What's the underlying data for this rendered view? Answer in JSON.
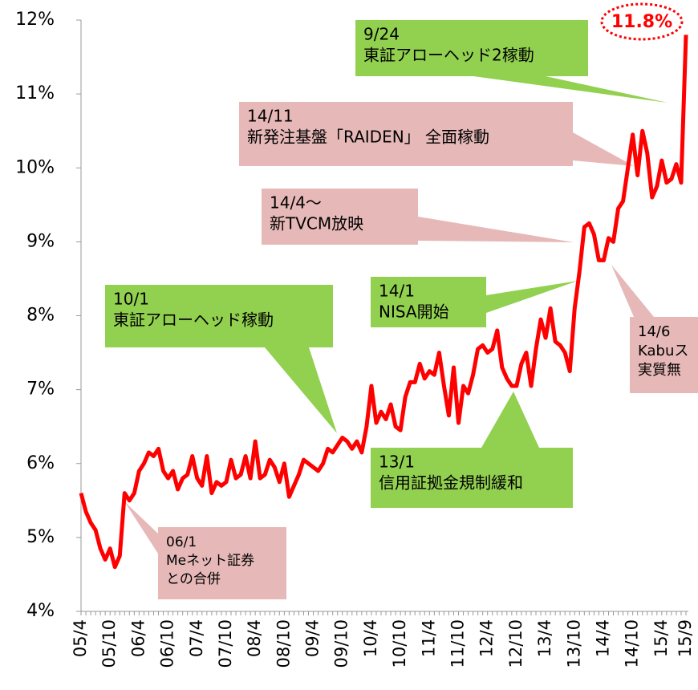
{
  "chart_data": {
    "type": "line",
    "categories": [
      "05/4",
      null,
      null,
      null,
      null,
      null,
      "05/10",
      null,
      null,
      null,
      null,
      null,
      "06/4",
      null,
      null,
      null,
      null,
      null,
      "06/10",
      null,
      null,
      null,
      null,
      null,
      "07/4",
      null,
      null,
      null,
      null,
      null,
      "07/10",
      null,
      null,
      null,
      null,
      null,
      "08/4",
      null,
      null,
      null,
      null,
      null,
      "08/10",
      null,
      null,
      null,
      null,
      null,
      "09/4",
      null,
      null,
      null,
      null,
      null,
      "09/10",
      null,
      null,
      null,
      null,
      null,
      "10/4",
      null,
      null,
      null,
      null,
      null,
      "10/10",
      null,
      null,
      null,
      null,
      null,
      "11/4",
      null,
      null,
      null,
      null,
      null,
      "11/10",
      null,
      null,
      null,
      null,
      null,
      "12/4",
      null,
      null,
      null,
      null,
      null,
      "12/10",
      null,
      null,
      null,
      null,
      null,
      "13/4",
      null,
      null,
      null,
      null,
      null,
      "13/10",
      null,
      null,
      null,
      null,
      null,
      "14/4",
      null,
      null,
      null,
      null,
      null,
      "14/10",
      null,
      null,
      null,
      null,
      null,
      "15/4",
      null,
      null,
      null,
      null,
      "15/9"
    ],
    "values": [
      5.6,
      5.35,
      5.2,
      5.1,
      4.85,
      4.7,
      4.85,
      4.6,
      4.75,
      5.6,
      5.5,
      5.6,
      5.9,
      6.0,
      6.15,
      6.1,
      6.2,
      5.9,
      5.8,
      5.9,
      5.65,
      5.8,
      5.85,
      6.1,
      5.8,
      5.7,
      6.1,
      5.6,
      5.75,
      5.7,
      5.75,
      6.05,
      5.8,
      5.85,
      6.1,
      5.8,
      6.3,
      5.8,
      5.85,
      6.05,
      5.95,
      5.75,
      6.0,
      5.55,
      5.7,
      5.85,
      6.05,
      6.0,
      5.95,
      5.9,
      6.0,
      6.2,
      6.15,
      6.25,
      6.35,
      6.3,
      6.2,
      6.3,
      6.15,
      6.5,
      7.05,
      6.55,
      6.7,
      6.6,
      6.8,
      6.5,
      6.45,
      6.9,
      7.1,
      7.1,
      7.35,
      7.15,
      7.25,
      7.2,
      7.5,
      7.05,
      6.65,
      7.3,
      6.55,
      7.05,
      6.95,
      7.2,
      7.55,
      7.6,
      7.5,
      7.55,
      7.8,
      7.3,
      7.15,
      7.05,
      7.05,
      7.35,
      7.5,
      7.05,
      7.55,
      7.95,
      7.7,
      8.1,
      7.65,
      7.6,
      7.5,
      7.25,
      8.1,
      8.6,
      9.2,
      9.25,
      9.1,
      8.75,
      8.75,
      9.05,
      9.0,
      9.45,
      9.55,
      10.0,
      10.45,
      9.9,
      10.5,
      10.2,
      9.6,
      9.75,
      10.1,
      9.8,
      9.85,
      10.05,
      9.8,
      11.8
    ],
    "value_labels": [
      null,
      null,
      null,
      null,
      null,
      null,
      null,
      null,
      null,
      null,
      null,
      null,
      null,
      null,
      null,
      null,
      null,
      null,
      null,
      null,
      null,
      null,
      null,
      null,
      null,
      null,
      null,
      null,
      null,
      null,
      null,
      null,
      null,
      null,
      null,
      null,
      null,
      null,
      null,
      null,
      null,
      null,
      null,
      null,
      null,
      null,
      null,
      null,
      null,
      null,
      null,
      null,
      null,
      null,
      null,
      null,
      null,
      null,
      null,
      null,
      null,
      null,
      null,
      null,
      null,
      null,
      null,
      null,
      null,
      null,
      null,
      null,
      null,
      null,
      null,
      null,
      null,
      null,
      null,
      null,
      null,
      null,
      null,
      null,
      null,
      null,
      null,
      null,
      null,
      null,
      null,
      null,
      null,
      null,
      null,
      null,
      null,
      null,
      null,
      null,
      null,
      null,
      null,
      null,
      null,
      null,
      null,
      null,
      null,
      null,
      null,
      null,
      null,
      null,
      null,
      null,
      null,
      null,
      null,
      null,
      null,
      null,
      null,
      null,
      null,
      "11.8%"
    ],
    "color": "#ff0000",
    "ylim": [
      4,
      12
    ],
    "yticks": [
      {
        "value": 4,
        "label": "4%"
      },
      {
        "value": 5,
        "label": "5%"
      },
      {
        "value": 6,
        "label": "6%"
      },
      {
        "value": 7,
        "label": "7%"
      },
      {
        "value": 8,
        "label": "8%"
      },
      {
        "value": 9,
        "label": "9%"
      },
      {
        "value": 10,
        "label": "10%"
      },
      {
        "value": 11,
        "label": "11%"
      },
      {
        "value": 12,
        "label": "12%"
      }
    ],
    "grid": false,
    "annotations": [
      {
        "lines": [
          "9/24",
          "東証アローヘッド2稼動"
        ],
        "color": "#92d050"
      },
      {
        "lines": [
          "14/11",
          "  新発注基盤「RAIDEN」  全面稼動"
        ],
        "color": "#e6b9b8"
      },
      {
        "lines": [
          "14/4～",
          "新TVCM放映"
        ],
        "color": "#e6b9b8"
      },
      {
        "lines": [
          "14/1",
          "NISA開始"
        ],
        "color": "#92d050"
      },
      {
        "lines": [
          "10/1",
          "東証アローヘッド稼動"
        ],
        "color": "#92d050"
      },
      {
        "lines": [
          "13/1",
          "信用証拠金規制緩和"
        ],
        "color": "#92d050"
      },
      {
        "lines": [
          "14/6",
          "Kabuス",
          "実質無"
        ],
        "color": "#e6b9b8"
      },
      {
        "lines": [
          "06/1",
          "Meネット証券",
          "との合併"
        ],
        "color": "#e6b9b8"
      }
    ]
  }
}
